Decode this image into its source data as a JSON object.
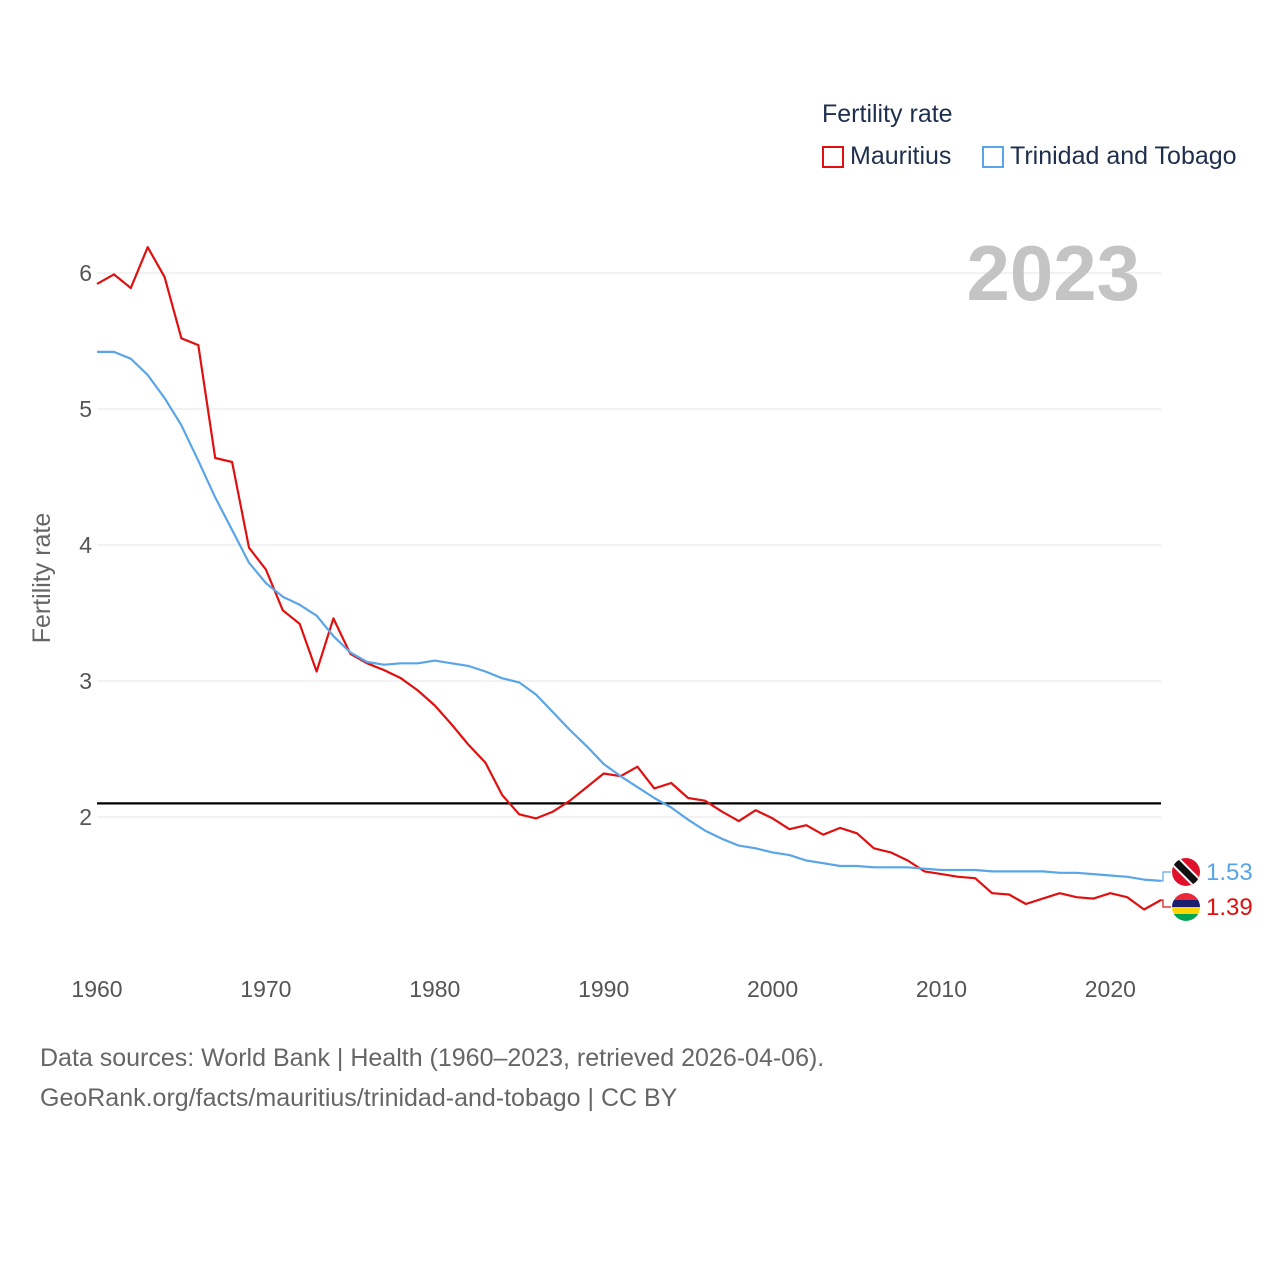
{
  "legend": {
    "title": "Fertility rate",
    "items": [
      {
        "name": "Mauritius",
        "color": "#e01010"
      },
      {
        "name": "Trinidad and Tobago",
        "color": "#5aa5e8"
      }
    ]
  },
  "year_label": "2023",
  "footer": {
    "line1": "Data sources: World Bank | Health (1960–2023, retrieved 2026-04-06).",
    "line2": "GeoRank.org/facts/mauritius/trinidad-and-tobago | CC BY"
  },
  "chart_data": {
    "type": "line",
    "title": "Fertility rate",
    "xlabel": "",
    "ylabel": "Fertility rate",
    "xlim": [
      1960,
      2023
    ],
    "ylim": [
      1.0,
      6.5
    ],
    "x_ticks": [
      1960,
      1970,
      1980,
      1990,
      2000,
      2010,
      2020
    ],
    "y_ticks": [
      2,
      3,
      4,
      5,
      6
    ],
    "reference_line": {
      "y": 2.1,
      "color": "#000000"
    },
    "x": [
      1960,
      1961,
      1962,
      1963,
      1964,
      1965,
      1966,
      1967,
      1968,
      1969,
      1970,
      1971,
      1972,
      1973,
      1974,
      1975,
      1976,
      1977,
      1978,
      1979,
      1980,
      1981,
      1982,
      1983,
      1984,
      1985,
      1986,
      1987,
      1988,
      1989,
      1990,
      1991,
      1992,
      1993,
      1994,
      1995,
      1996,
      1997,
      1998,
      1999,
      2000,
      2001,
      2002,
      2003,
      2004,
      2005,
      2006,
      2007,
      2008,
      2009,
      2010,
      2011,
      2012,
      2013,
      2014,
      2015,
      2016,
      2017,
      2018,
      2019,
      2020,
      2021,
      2022,
      2023
    ],
    "series": [
      {
        "name": "Mauritius",
        "color": "#e01010",
        "end_label": "1.39",
        "values": [
          5.92,
          5.99,
          5.89,
          6.19,
          5.97,
          5.52,
          5.47,
          4.64,
          4.61,
          3.98,
          3.82,
          3.52,
          3.42,
          3.07,
          3.46,
          3.2,
          3.13,
          3.08,
          3.02,
          2.93,
          2.82,
          2.68,
          2.53,
          2.4,
          2.16,
          2.02,
          1.99,
          2.04,
          2.12,
          2.22,
          2.32,
          2.3,
          2.37,
          2.21,
          2.25,
          2.14,
          2.12,
          2.04,
          1.97,
          2.05,
          1.99,
          1.91,
          1.94,
          1.87,
          1.92,
          1.88,
          1.77,
          1.74,
          1.68,
          1.6,
          1.58,
          1.56,
          1.55,
          1.44,
          1.43,
          1.36,
          1.4,
          1.44,
          1.41,
          1.4,
          1.44,
          1.41,
          1.32,
          1.39
        ]
      },
      {
        "name": "Trinidad and Tobago",
        "color": "#5aa5e8",
        "end_label": "1.53",
        "values": [
          5.42,
          5.42,
          5.37,
          5.25,
          5.08,
          4.88,
          4.62,
          4.35,
          4.11,
          3.87,
          3.72,
          3.62,
          3.56,
          3.48,
          3.33,
          3.21,
          3.14,
          3.12,
          3.13,
          3.13,
          3.15,
          3.13,
          3.11,
          3.07,
          3.02,
          2.99,
          2.9,
          2.77,
          2.64,
          2.52,
          2.39,
          2.3,
          2.22,
          2.14,
          2.07,
          1.98,
          1.9,
          1.84,
          1.79,
          1.77,
          1.74,
          1.72,
          1.68,
          1.66,
          1.64,
          1.64,
          1.63,
          1.63,
          1.63,
          1.62,
          1.61,
          1.61,
          1.61,
          1.6,
          1.6,
          1.6,
          1.6,
          1.59,
          1.59,
          1.58,
          1.57,
          1.56,
          1.54,
          1.53
        ]
      }
    ]
  }
}
